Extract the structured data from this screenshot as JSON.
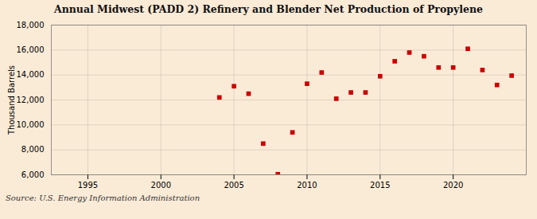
{
  "chart_data": {
    "type": "scatter",
    "title": "Annual Midwest (PADD 2) Refinery and Blender Net Production of Propylene",
    "ylabel": "Thousand Barrels",
    "source": "Source: U.S. Energy Information Administration",
    "x": [
      2004,
      2005,
      2006,
      2007,
      2008,
      2009,
      2010,
      2011,
      2012,
      2013,
      2014,
      2015,
      2016,
      2017,
      2018,
      2019,
      2020,
      2021,
      2022,
      2023,
      2024
    ],
    "values": [
      12200,
      13100,
      12500,
      8500,
      6050,
      9400,
      13300,
      14200,
      12100,
      12600,
      12600,
      13900,
      15100,
      15800,
      15500,
      14600,
      14600,
      16100,
      14400,
      13200,
      13950
    ],
    "color": "#cc0000",
    "marker": "square",
    "xlim": [
      1992.5,
      2025
    ],
    "xticks": [
      1995,
      2000,
      2005,
      2010,
      2015,
      2020
    ],
    "ylim": [
      6000,
      18000
    ],
    "yticks": [
      {
        "value": 6000,
        "label": "6,000"
      },
      {
        "value": 8000,
        "label": "8,000"
      },
      {
        "value": 10000,
        "label": "10,000"
      },
      {
        "value": 12000,
        "label": "12,000"
      },
      {
        "value": 14000,
        "label": "14,000"
      },
      {
        "value": 16000,
        "label": "16,000"
      },
      {
        "value": 18000,
        "label": "18,000"
      }
    ],
    "grid": true
  }
}
